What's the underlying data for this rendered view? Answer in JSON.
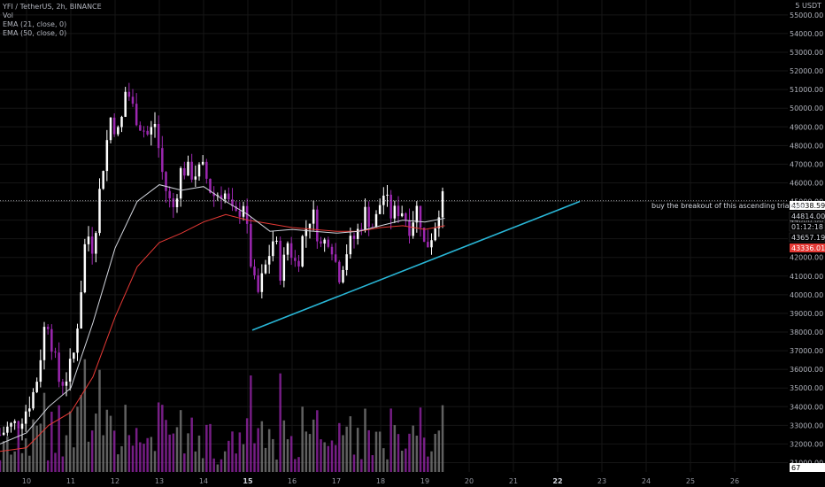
{
  "header": {
    "legend": [
      "YFI / TetherUS, 2h, BINANCE",
      "Vol",
      "EMA (21, close, 0)",
      "EMA (50, close, 0)"
    ],
    "currency_label": "5 USDT"
  },
  "annotation": "buy the breakout of this ascending triangle",
  "colors": {
    "background": "#000000",
    "bull": "#ffffff",
    "bear": "#9c27b0",
    "volume": "#808080",
    "ema21": "#d1d4dc",
    "ema50": "#e53935",
    "trendline": "#29b6d6",
    "grid": "#161616"
  },
  "price_tags": [
    {
      "label": "45038.59",
      "bg": "#ffffff",
      "fg": "#000000"
    },
    {
      "label": "44814.00",
      "bg": "#000000",
      "fg": "#d1d4dc"
    },
    {
      "label": "01:12:18",
      "bg": "#000000",
      "fg": "#d1d4dc"
    },
    {
      "label": "43657.19",
      "bg": "#000000",
      "fg": "#d1d4dc"
    },
    {
      "label": "43336.01",
      "bg": "#e53935",
      "fg": "#ffffff"
    },
    {
      "label": "67",
      "bg": "#ffffff",
      "fg": "#000000"
    }
  ],
  "chart_data": {
    "type": "candlestick",
    "yaxis": {
      "min": 30500,
      "max": 55800,
      "ticks": [
        31000,
        32000,
        33000,
        34000,
        35000,
        36000,
        37000,
        38000,
        39000,
        40000,
        41000,
        42000,
        43000,
        44000,
        45000,
        46000,
        47000,
        48000,
        49000,
        50000,
        51000,
        52000,
        53000,
        54000,
        55000
      ],
      "tick_labels": [
        "31000.00",
        "32000.00",
        "33000.00",
        "34000.00",
        "35000.00",
        "36000.00",
        "37000.00",
        "38000.00",
        "39000.00",
        "40000.00",
        "41000.00",
        "42000.00",
        "43000.00",
        "44000.00",
        "45000.00",
        "46000.00",
        "47000.00",
        "48000.00",
        "49000.00",
        "50000.00",
        "51000.00",
        "52000.00",
        "53000.00",
        "54000.00",
        "55000.00"
      ]
    },
    "xaxis": {
      "min": 9.4,
      "max": 27.2,
      "ticks": [
        10,
        11,
        12,
        13,
        14,
        15,
        16,
        17,
        18,
        19,
        20,
        21,
        22,
        23,
        24,
        25,
        26
      ],
      "tick_labels": [
        "10",
        "11",
        "12",
        "13",
        "14",
        "15",
        "16",
        "17",
        "18",
        "19",
        "20",
        "21",
        "22",
        "23",
        "24",
        "25",
        "26"
      ],
      "bold_labels": [
        "15",
        "22"
      ]
    },
    "anchors": [
      [
        9.4,
        32500
      ],
      [
        9.6,
        32900
      ],
      [
        9.8,
        33100
      ],
      [
        10.0,
        33900
      ],
      [
        10.2,
        35000
      ],
      [
        10.3,
        36500
      ],
      [
        10.45,
        39000
      ],
      [
        10.6,
        37000
      ],
      [
        10.75,
        35200
      ],
      [
        10.9,
        35600
      ],
      [
        11.05,
        36500
      ],
      [
        11.2,
        39500
      ],
      [
        11.35,
        43500
      ],
      [
        11.5,
        42500
      ],
      [
        11.7,
        46500
      ],
      [
        11.9,
        49500
      ],
      [
        12.1,
        48500
      ],
      [
        12.25,
        51200
      ],
      [
        12.4,
        50000
      ],
      [
        12.55,
        49200
      ],
      [
        12.75,
        48500
      ],
      [
        12.9,
        49200
      ],
      [
        13.1,
        46000
      ],
      [
        13.3,
        44500
      ],
      [
        13.5,
        46800
      ],
      [
        13.75,
        46500
      ],
      [
        14.0,
        46700
      ],
      [
        14.2,
        45300
      ],
      [
        14.45,
        45600
      ],
      [
        14.7,
        44000
      ],
      [
        14.9,
        45000
      ],
      [
        15.05,
        42000
      ],
      [
        15.2,
        39800
      ],
      [
        15.4,
        41500
      ],
      [
        15.6,
        43200
      ],
      [
        15.75,
        41000
      ],
      [
        15.9,
        42800
      ],
      [
        16.1,
        41500
      ],
      [
        16.25,
        43200
      ],
      [
        16.45,
        44500
      ],
      [
        16.65,
        42600
      ],
      [
        16.85,
        43200
      ],
      [
        17.05,
        41000
      ],
      [
        17.25,
        42500
      ],
      [
        17.45,
        43200
      ],
      [
        17.65,
        44400
      ],
      [
        17.85,
        43600
      ],
      [
        18.05,
        45500
      ],
      [
        18.25,
        44200
      ],
      [
        18.45,
        44700
      ],
      [
        18.65,
        43700
      ],
      [
        18.85,
        44800
      ],
      [
        19.0,
        42400
      ],
      [
        19.2,
        43500
      ],
      [
        19.35,
        45000
      ],
      [
        19.45,
        45100
      ]
    ],
    "ema21": [
      [
        9.4,
        32000
      ],
      [
        10.0,
        32600
      ],
      [
        10.5,
        34000
      ],
      [
        11.0,
        35000
      ],
      [
        11.5,
        38500
      ],
      [
        12.0,
        42500
      ],
      [
        12.5,
        45000
      ],
      [
        13.0,
        45900
      ],
      [
        13.5,
        45600
      ],
      [
        14.0,
        45800
      ],
      [
        14.5,
        45000
      ],
      [
        15.0,
        44300
      ],
      [
        15.5,
        43400
      ],
      [
        16.0,
        43500
      ],
      [
        16.5,
        43400
      ],
      [
        17.0,
        43300
      ],
      [
        17.5,
        43400
      ],
      [
        18.0,
        43700
      ],
      [
        18.5,
        44000
      ],
      [
        19.0,
        43900
      ],
      [
        19.45,
        44100
      ]
    ],
    "ema50": [
      [
        9.4,
        31600
      ],
      [
        10.0,
        31800
      ],
      [
        10.5,
        33000
      ],
      [
        11.0,
        33700
      ],
      [
        11.5,
        35600
      ],
      [
        12.0,
        38800
      ],
      [
        12.5,
        41500
      ],
      [
        13.0,
        42800
      ],
      [
        13.5,
        43300
      ],
      [
        14.0,
        43900
      ],
      [
        14.5,
        44300
      ],
      [
        15.0,
        44000
      ],
      [
        15.5,
        43800
      ],
      [
        16.0,
        43600
      ],
      [
        16.5,
        43500
      ],
      [
        17.0,
        43400
      ],
      [
        17.5,
        43400
      ],
      [
        18.0,
        43600
      ],
      [
        18.5,
        43700
      ],
      [
        19.0,
        43500
      ],
      [
        19.45,
        43700
      ]
    ],
    "trendline": {
      "from": [
        15.1,
        38100
      ],
      "to": [
        22.5,
        45000
      ]
    },
    "horizontal_line": 45038.59
  }
}
